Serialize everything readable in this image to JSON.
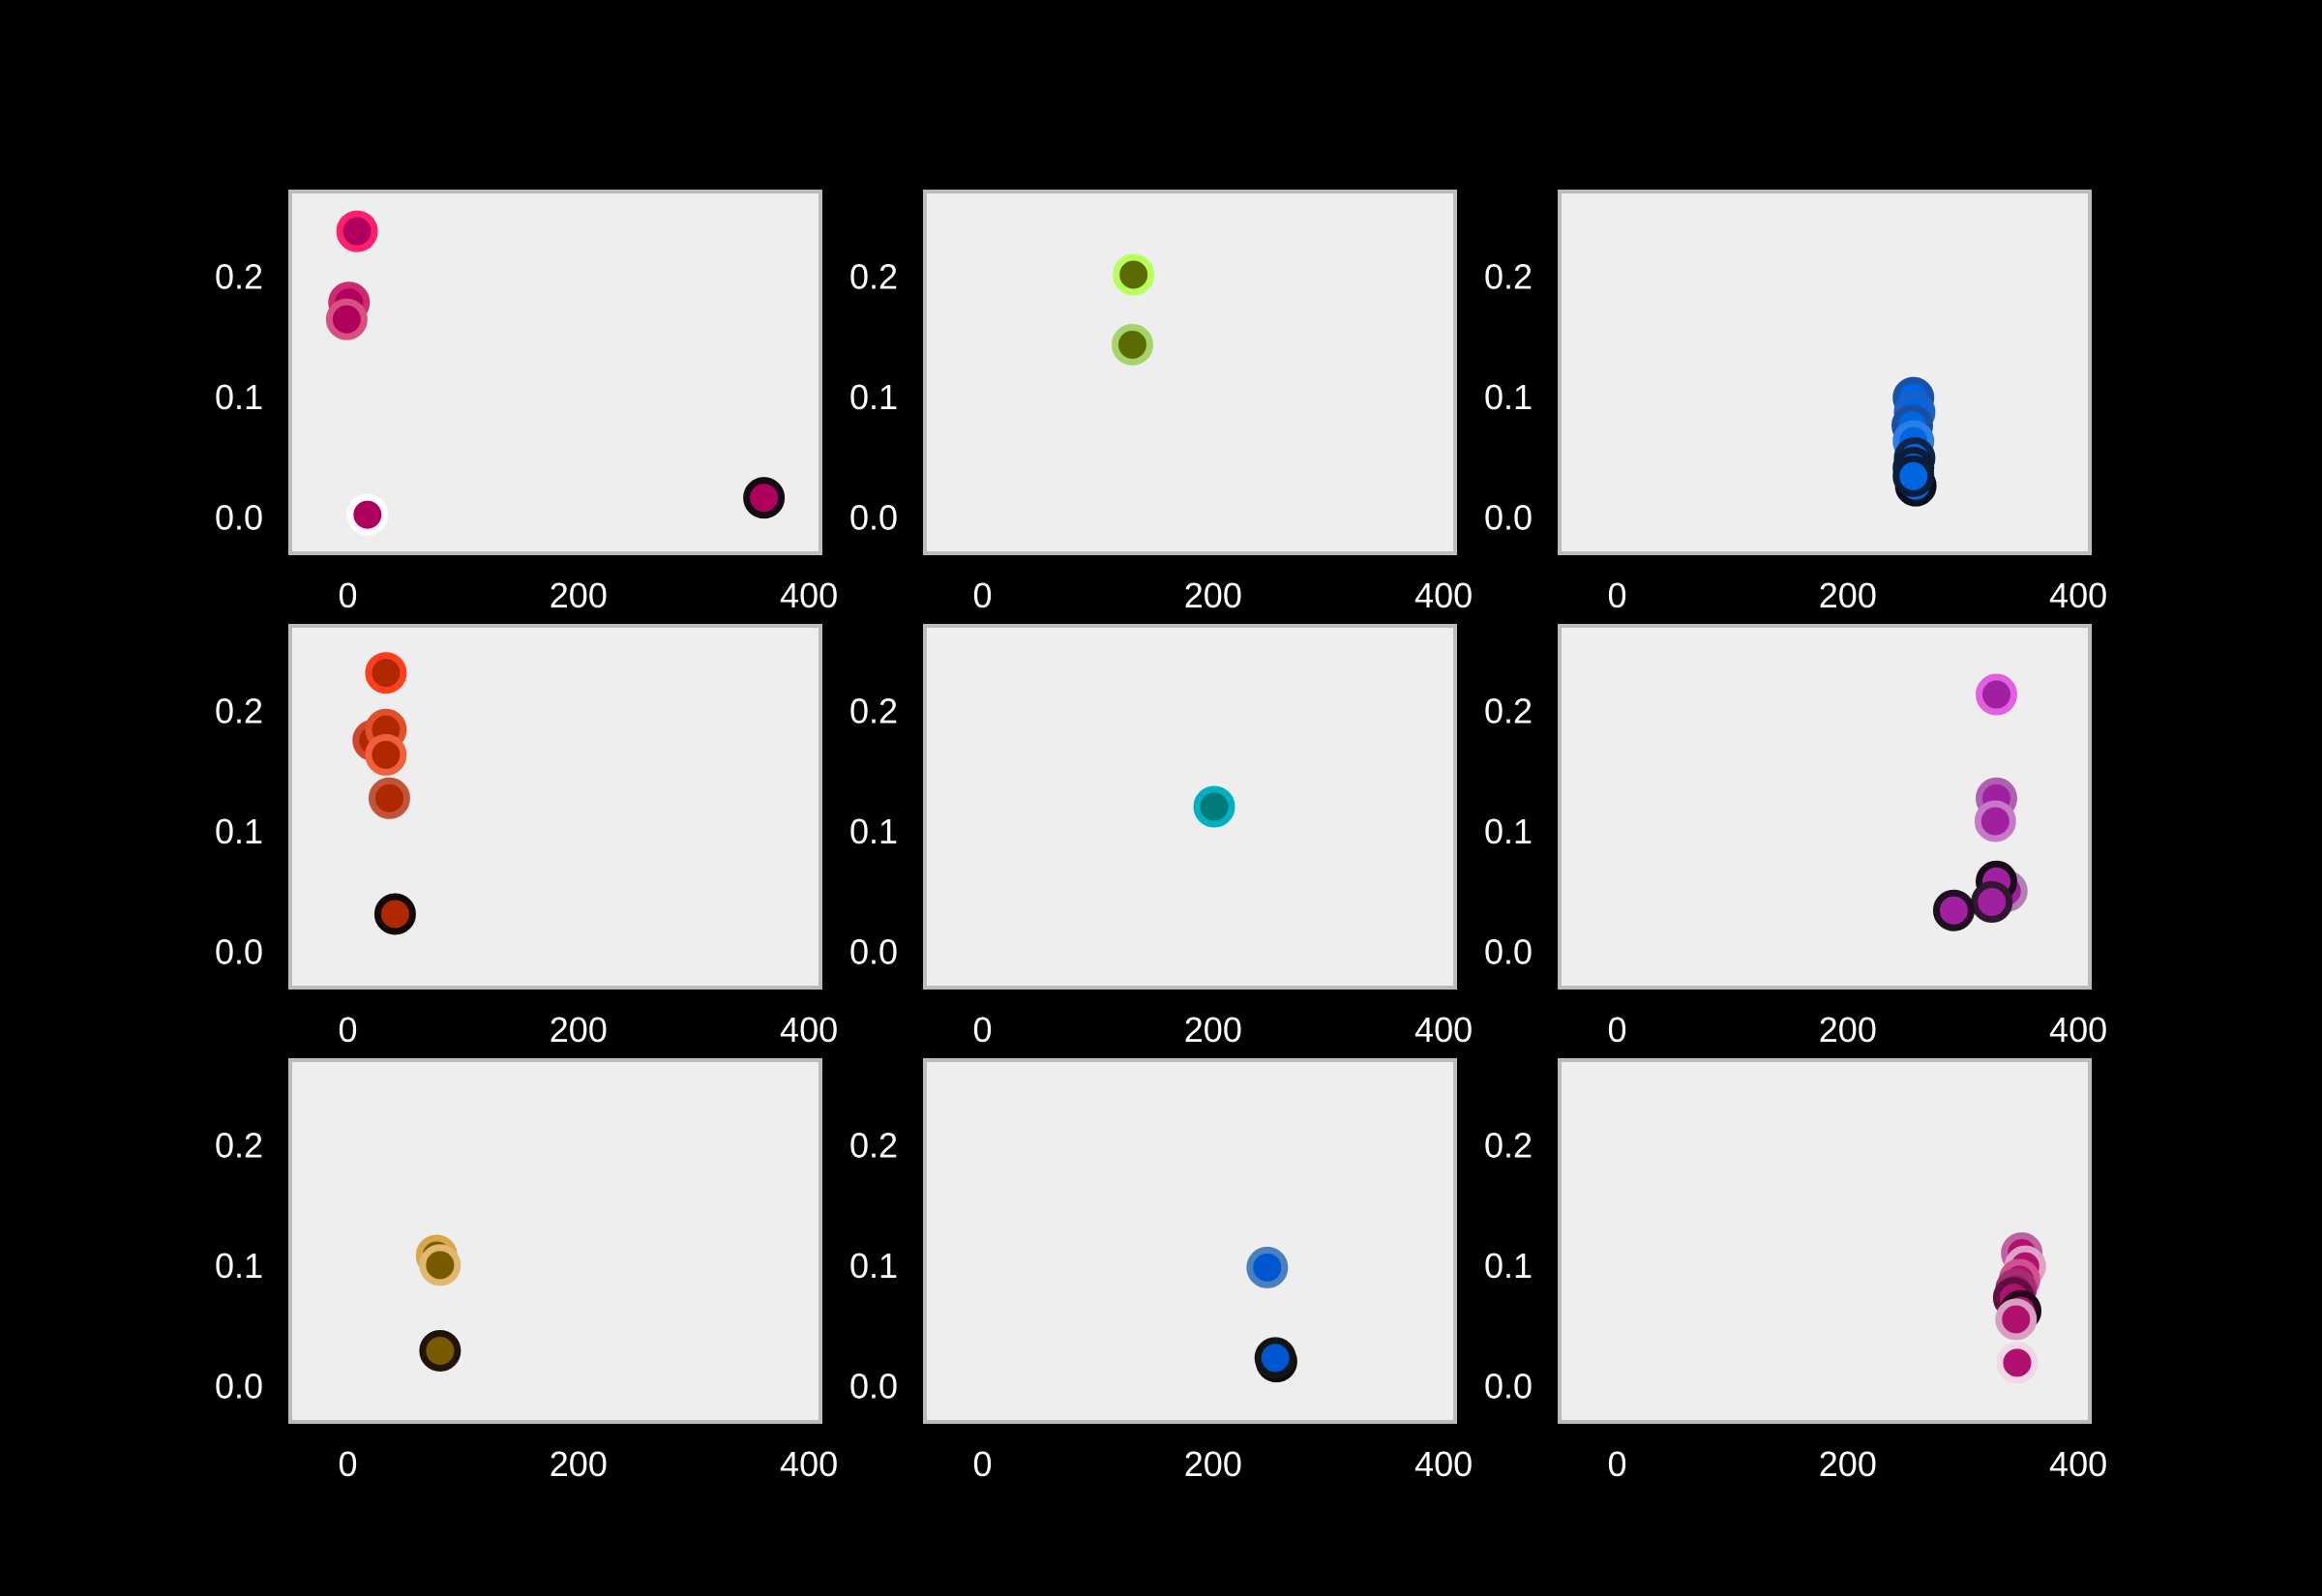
{
  "chart_data": [
    {
      "type": "scatter",
      "title": "",
      "xlabel": "",
      "ylabel": "",
      "xlim": [
        -50,
        410
      ],
      "ylim": [
        -0.03,
        0.27
      ],
      "xticks": [
        0,
        200,
        400
      ],
      "xtick_labels": [
        "0",
        "200",
        "400"
      ],
      "yticks": [
        0.0,
        0.1,
        0.2
      ],
      "ytick_labels": [
        "0.0",
        "0.1",
        "0.2"
      ],
      "grid": false,
      "marker_color": "#b0005f",
      "points": [
        {
          "x": 8,
          "y": 0.237,
          "edge": "#ff1f6f"
        },
        {
          "x": 1,
          "y": 0.178,
          "edge": "#d02a6e"
        },
        {
          "x": -1,
          "y": 0.164,
          "edge": "#d8507e"
        },
        {
          "x": 17,
          "y": 0.002,
          "edge": "#ffffff"
        },
        {
          "x": 361,
          "y": 0.016,
          "edge": "#140a0f"
        }
      ]
    },
    {
      "type": "scatter",
      "title": "",
      "xlabel": "",
      "ylabel": "",
      "xlim": [
        -50,
        410
      ],
      "ylim": [
        -0.03,
        0.27
      ],
      "xticks": [
        0,
        200,
        400
      ],
      "xtick_labels": [
        "0",
        "200",
        "400"
      ],
      "yticks": [
        0.0,
        0.1,
        0.2
      ],
      "ytick_labels": [
        "0.0",
        "0.1",
        "0.2"
      ],
      "grid": false,
      "marker_color": "#5a6a05",
      "points": [
        {
          "x": 131,
          "y": 0.201,
          "edge": "#b7ff5a"
        },
        {
          "x": 130,
          "y": 0.143,
          "edge": "#a5d46b"
        }
      ]
    },
    {
      "type": "scatter",
      "title": "",
      "xlabel": "",
      "ylabel": "",
      "xlim": [
        -50,
        410
      ],
      "ylim": [
        -0.03,
        0.27
      ],
      "xticks": [
        0,
        200,
        400
      ],
      "xtick_labels": [
        "0",
        "200",
        "400"
      ],
      "yticks": [
        0.0,
        0.1,
        0.2
      ],
      "ytick_labels": [
        "0.0",
        "0.1",
        "0.2"
      ],
      "grid": false,
      "marker_color": "#0066e0",
      "points": [
        {
          "x": 257,
          "y": 0.099,
          "edge": "#1552a8"
        },
        {
          "x": 258,
          "y": 0.087,
          "edge": "#1a60c8"
        },
        {
          "x": 256,
          "y": 0.076,
          "edge": "#1a4fa0"
        },
        {
          "x": 257,
          "y": 0.063,
          "edge": "#2a7ee8"
        },
        {
          "x": 258,
          "y": 0.049,
          "edge": "#0e2546"
        },
        {
          "x": 257,
          "y": 0.041,
          "edge": "#0b1d38"
        },
        {
          "x": 259,
          "y": 0.026,
          "edge": "#081020"
        },
        {
          "x": 257,
          "y": 0.034,
          "edge": "#0b1d38"
        }
      ]
    },
    {
      "type": "scatter",
      "title": "",
      "xlabel": "",
      "ylabel": "",
      "xlim": [
        -50,
        410
      ],
      "ylim": [
        -0.03,
        0.27
      ],
      "xticks": [
        0,
        200,
        400
      ],
      "xtick_labels": [
        "0",
        "200",
        "400"
      ],
      "yticks": [
        0.0,
        0.1,
        0.2
      ],
      "ytick_labels": [
        "0.0",
        "0.1",
        "0.2"
      ],
      "grid": false,
      "marker_color": "#b02800",
      "points": [
        {
          "x": 33,
          "y": 0.231,
          "edge": "#ff3e1f"
        },
        {
          "x": 22,
          "y": 0.175,
          "edge": "#d04530"
        },
        {
          "x": 33,
          "y": 0.184,
          "edge": "#e0502a"
        },
        {
          "x": 33,
          "y": 0.163,
          "edge": "#f06040"
        },
        {
          "x": 36,
          "y": 0.127,
          "edge": "#c0553a"
        },
        {
          "x": 41,
          "y": 0.031,
          "edge": "#140806"
        }
      ]
    },
    {
      "type": "scatter",
      "title": "",
      "xlabel": "",
      "ylabel": "",
      "xlim": [
        -50,
        410
      ],
      "ylim": [
        -0.03,
        0.27
      ],
      "xticks": [
        0,
        200,
        400
      ],
      "xtick_labels": [
        "0",
        "200",
        "400"
      ],
      "yticks": [
        0.0,
        0.1,
        0.2
      ],
      "ytick_labels": [
        "0.0",
        "0.1",
        "0.2"
      ],
      "grid": false,
      "marker_color": "#007a7a",
      "points": [
        {
          "x": 201,
          "y": 0.12,
          "edge": "#00b0c0"
        }
      ]
    },
    {
      "type": "scatter",
      "title": "",
      "xlabel": "",
      "ylabel": "",
      "xlim": [
        -50,
        410
      ],
      "ylim": [
        -0.03,
        0.27
      ],
      "xticks": [
        0,
        200,
        400
      ],
      "xtick_labels": [
        "0",
        "200",
        "400"
      ],
      "yticks": [
        0.0,
        0.1,
        0.2
      ],
      "ytick_labels": [
        "0.0",
        "0.1",
        "0.2"
      ],
      "grid": false,
      "marker_color": "#a020a0",
      "points": [
        {
          "x": 329,
          "y": 0.213,
          "edge": "#e060e0"
        },
        {
          "x": 329,
          "y": 0.127,
          "edge": "#b060b0"
        },
        {
          "x": 328,
          "y": 0.108,
          "edge": "#c878c8"
        },
        {
          "x": 338,
          "y": 0.05,
          "edge": "#b080b0"
        },
        {
          "x": 329,
          "y": 0.058,
          "edge": "#180c18"
        },
        {
          "x": 325,
          "y": 0.041,
          "edge": "#301830"
        },
        {
          "x": 292,
          "y": 0.034,
          "edge": "#201020"
        }
      ]
    },
    {
      "type": "scatter",
      "title": "",
      "xlabel": "",
      "ylabel": "",
      "xlim": [
        -50,
        410
      ],
      "ylim": [
        -0.03,
        0.27
      ],
      "xticks": [
        0,
        200,
        400
      ],
      "xtick_labels": [
        "0",
        "200",
        "400"
      ],
      "yticks": [
        0.0,
        0.1,
        0.2
      ],
      "ytick_labels": [
        "0.0",
        "0.1",
        "0.2"
      ],
      "grid": false,
      "marker_color": "#7a5a00",
      "points": [
        {
          "x": 77,
          "y": 0.108,
          "edge": "#d8a848"
        },
        {
          "x": 80,
          "y": 0.1,
          "edge": "#e0b870"
        },
        {
          "x": 80,
          "y": 0.029,
          "edge": "#201408"
        }
      ]
    },
    {
      "type": "scatter",
      "title": "",
      "xlabel": "",
      "ylabel": "",
      "xlim": [
        -50,
        410
      ],
      "ylim": [
        -0.03,
        0.27
      ],
      "xticks": [
        0,
        200,
        400
      ],
      "xtick_labels": [
        "0",
        "200",
        "400"
      ],
      "yticks": [
        0.0,
        0.1,
        0.2
      ],
      "ytick_labels": [
        "0.0",
        "0.1",
        "0.2"
      ],
      "grid": false,
      "marker_color": "#0055d0",
      "points": [
        {
          "x": 247,
          "y": 0.098,
          "edge": "#4a80c0"
        },
        {
          "x": 255,
          "y": 0.02,
          "edge": "#0a0a0a"
        },
        {
          "x": 254,
          "y": 0.023,
          "edge": "#141414"
        }
      ]
    },
    {
      "type": "scatter",
      "title": "",
      "xlabel": "",
      "ylabel": "",
      "xlim": [
        -50,
        410
      ],
      "ylim": [
        -0.03,
        0.27
      ],
      "xticks": [
        0,
        200,
        400
      ],
      "xtick_labels": [
        "0",
        "200",
        "400"
      ],
      "yticks": [
        0.0,
        0.1,
        0.2
      ],
      "ytick_labels": [
        "0.0",
        "0.1",
        "0.2"
      ],
      "grid": false,
      "marker_color": "#b0106e",
      "points": [
        {
          "x": 351,
          "y": 0.11,
          "edge": "#c060a0"
        },
        {
          "x": 354,
          "y": 0.099,
          "edge": "#e0a0c8"
        },
        {
          "x": 349,
          "y": 0.088,
          "edge": "#d05090"
        },
        {
          "x": 346,
          "y": 0.08,
          "edge": "#a03070"
        },
        {
          "x": 344,
          "y": 0.073,
          "edge": "#601040"
        },
        {
          "x": 350,
          "y": 0.062,
          "edge": "#200818"
        },
        {
          "x": 346,
          "y": 0.055,
          "edge": "#d8a0c0"
        },
        {
          "x": 347,
          "y": 0.019,
          "edge": "#f0d8e6"
        }
      ]
    }
  ]
}
